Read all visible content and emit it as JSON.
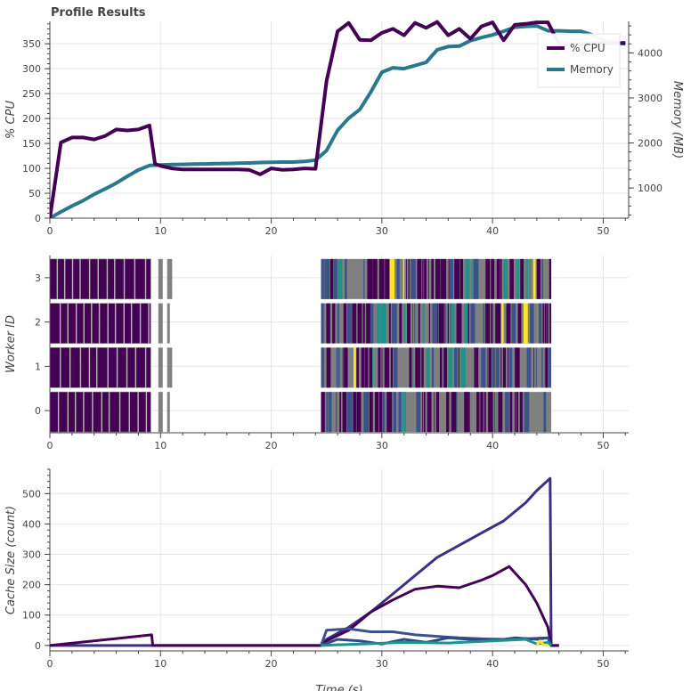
{
  "title": "Profile Results",
  "chart_data": [
    {
      "type": "line",
      "panel": "top",
      "title": "Profile Results",
      "xlim": [
        0,
        52.3
      ],
      "ylim": [
        0,
        395
      ],
      "y2lim": [
        330,
        4700
      ],
      "ylabel": "% CPU",
      "y2label": "Memory (MB)",
      "xticks": [
        0,
        10,
        20,
        30,
        40,
        50
      ],
      "yticks": [
        0,
        50,
        100,
        150,
        200,
        250,
        300,
        350
      ],
      "y2ticks": [
        1000,
        2000,
        3000,
        4000
      ],
      "legend": {
        "placement": "top-right",
        "entries": [
          "% CPU",
          "Memory"
        ]
      },
      "grid": true,
      "series": [
        {
          "name": "% CPU",
          "axis": "left",
          "color": "#440154",
          "x": [
            0,
            1,
            2,
            3,
            4,
            5,
            6,
            7,
            8,
            9,
            9.5,
            10,
            11,
            12,
            13,
            14,
            15,
            16,
            17,
            18,
            19,
            20,
            21,
            22,
            23,
            24,
            25,
            26,
            27,
            28,
            29,
            30,
            31,
            32,
            33,
            34,
            35,
            36,
            37,
            38,
            39,
            40,
            41,
            42,
            43,
            44,
            45,
            46,
            47,
            48,
            49,
            50,
            51,
            52
          ],
          "values": [
            0,
            152,
            162,
            162,
            158,
            165,
            178,
            176,
            178,
            186,
            109,
            105,
            100,
            98,
            98,
            98,
            98,
            98,
            98,
            97,
            88,
            100,
            97,
            98,
            100,
            99,
            275,
            375,
            392,
            358,
            357,
            372,
            380,
            367,
            392,
            382,
            394,
            367,
            380,
            360,
            385,
            393,
            357,
            388,
            390,
            393,
            393,
            350,
            350,
            350,
            351,
            351,
            351,
            352
          ]
        },
        {
          "name": "Memory",
          "axis": "right",
          "color": "#2a788e",
          "x": [
            0,
            1,
            2,
            3,
            4,
            5,
            6,
            7,
            8,
            9,
            10,
            11,
            12,
            13,
            14,
            15,
            16,
            17,
            18,
            19,
            20,
            21,
            22,
            23,
            24,
            25,
            26,
            27,
            28,
            29,
            30,
            31,
            32,
            33,
            34,
            35,
            36,
            37,
            38,
            39,
            40,
            41,
            42,
            43,
            44,
            45,
            46,
            47,
            48,
            49,
            50,
            51,
            52
          ],
          "values": [
            330,
            470,
            600,
            720,
            860,
            980,
            1110,
            1260,
            1400,
            1500,
            1510,
            1520,
            1525,
            1530,
            1535,
            1540,
            1545,
            1550,
            1555,
            1565,
            1570,
            1575,
            1575,
            1590,
            1620,
            1830,
            2280,
            2550,
            2740,
            3130,
            3570,
            3670,
            3650,
            3720,
            3790,
            4070,
            4140,
            4150,
            4270,
            4340,
            4400,
            4480,
            4570,
            4590,
            4600,
            4490,
            4490,
            4480,
            4480,
            4400,
            4280,
            4230,
            4200
          ]
        }
      ]
    },
    {
      "type": "heatmap",
      "panel": "middle",
      "xlim": [
        0,
        52.3
      ],
      "ylim": [
        -0.5,
        3.5
      ],
      "ylabel": "Worker ID",
      "xticks": [
        0,
        10,
        20,
        30,
        40,
        50
      ],
      "yticks": [
        0,
        1,
        2,
        3
      ],
      "grid": true,
      "workers": [
        0,
        1,
        2,
        3
      ],
      "dense_task_colors": [
        "#808080",
        "#440154",
        "#3b528b",
        "#21918c",
        "#fde725"
      ],
      "phases": [
        {
          "start": 0,
          "end": 9.2,
          "color": "#440154"
        },
        {
          "start": 9.8,
          "end": 11.1,
          "color": "#808080"
        },
        {
          "start": 24.5,
          "end": 45.3,
          "color": "#808080"
        }
      ]
    },
    {
      "type": "line",
      "panel": "bottom",
      "xlim": [
        0,
        52.3
      ],
      "ylim": [
        -18,
        580
      ],
      "xlabel": "Time (s)",
      "ylabel": "Cache Size (count)",
      "xticks": [
        0,
        10,
        20,
        30,
        40,
        50
      ],
      "yticks": [
        0,
        100,
        200,
        300,
        400,
        500
      ],
      "grid": true,
      "series": [
        {
          "color": "#3e2f83",
          "x": [
            0,
            24.5,
            25,
            27,
            29,
            31,
            33,
            35,
            37,
            39,
            41,
            43,
            44,
            45.2,
            45.3,
            46
          ],
          "values": [
            0,
            0,
            20,
            60,
            110,
            170,
            230,
            290,
            330,
            370,
            410,
            470,
            510,
            550,
            0,
            0
          ]
        },
        {
          "color": "#440154",
          "x": [
            0,
            9.2,
            9.3,
            24.5,
            25,
            27,
            29,
            31,
            33,
            35,
            37,
            39,
            40,
            41,
            41.5,
            42,
            43,
            44,
            45,
            45.3,
            46
          ],
          "values": [
            0,
            35,
            0,
            0,
            15,
            50,
            110,
            150,
            185,
            195,
            190,
            215,
            230,
            250,
            260,
            240,
            200,
            140,
            60,
            0,
            0
          ]
        },
        {
          "color": "#3b528b",
          "x": [
            24.5,
            25,
            27,
            29,
            31,
            33,
            35,
            37,
            39,
            41,
            43,
            45,
            45.3
          ],
          "values": [
            0,
            50,
            55,
            45,
            45,
            35,
            30,
            25,
            22,
            20,
            22,
            25,
            0
          ]
        },
        {
          "color": "#2c4a87",
          "x": [
            24.5,
            26,
            28,
            30,
            32,
            34,
            36,
            38,
            40,
            42,
            44,
            45,
            45.3
          ],
          "values": [
            0,
            20,
            15,
            5,
            20,
            10,
            25,
            20,
            15,
            25,
            20,
            25,
            0
          ]
        },
        {
          "color": "#21918c",
          "x": [
            24.5,
            28,
            32,
            36,
            40,
            43,
            44,
            45,
            45.3
          ],
          "values": [
            0,
            5,
            10,
            8,
            15,
            20,
            5,
            10,
            0
          ]
        },
        {
          "color": "#fde725",
          "x": [
            44,
            44.3,
            44.6,
            45
          ],
          "values": [
            0,
            15,
            2,
            0
          ]
        }
      ]
    }
  ]
}
